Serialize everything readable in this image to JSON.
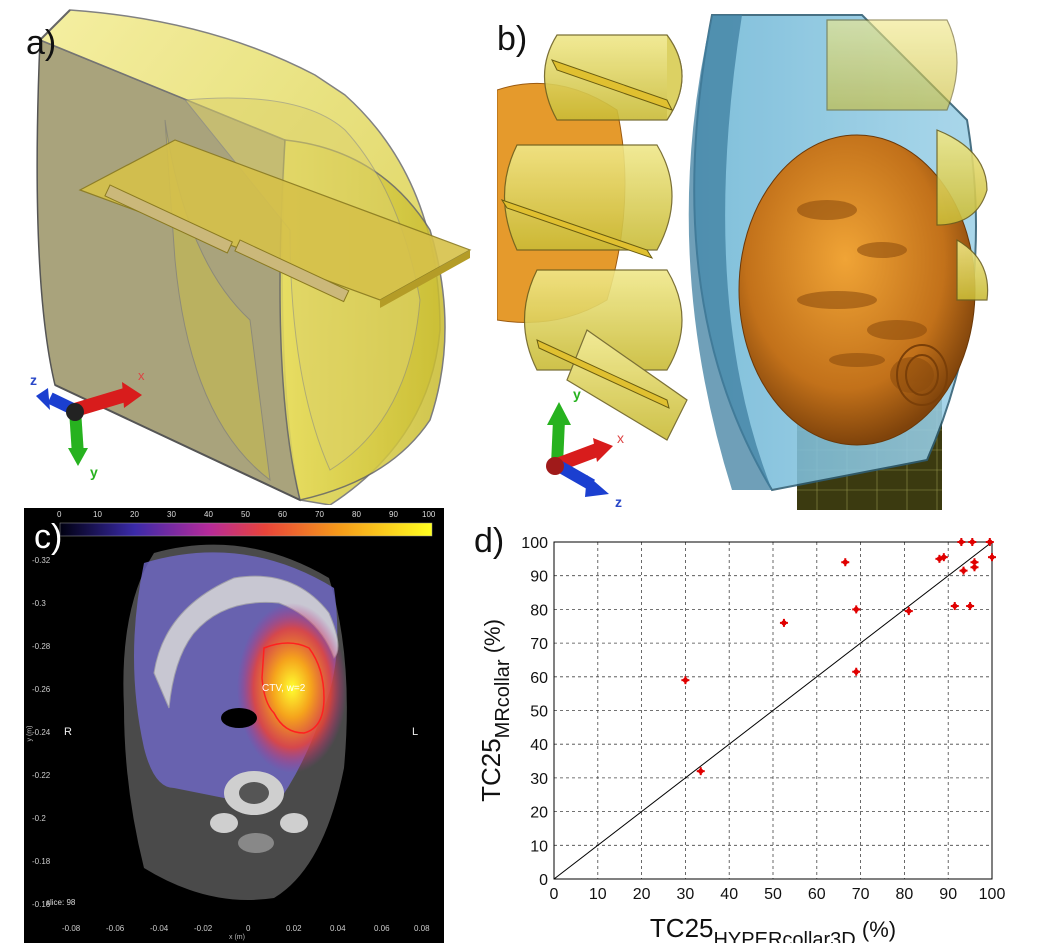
{
  "panels": {
    "a": {
      "label": "a)",
      "axis_x": "x",
      "axis_y": "y",
      "axis_z": "z"
    },
    "b": {
      "label": "b)",
      "axis_x": "x",
      "axis_y": "y",
      "axis_z": "z"
    },
    "c": {
      "label": "c)",
      "colorbar_ticks": [
        "0",
        "10",
        "20",
        "30",
        "40",
        "50",
        "60",
        "70",
        "80",
        "90",
        "100"
      ],
      "y_ticks": [
        "-0.32",
        "-0.3",
        "-0.28",
        "-0.26",
        "-0.24",
        "-0.22",
        "-0.2",
        "-0.18",
        "-0.16"
      ],
      "x_ticks": [
        "-0.08",
        "-0.06",
        "-0.04",
        "-0.02",
        "0",
        "0.02",
        "0.04",
        "0.06",
        "0.08"
      ],
      "x_axis_label": "x (m)",
      "y_axis_label": "y (m)",
      "left_marker": "R",
      "right_marker": "L",
      "ctv_label": "CTV, w=2",
      "slice_label": "slice: 98"
    },
    "d": {
      "label": "d)"
    }
  },
  "chart_data": {
    "type": "scatter",
    "xlabel_main": "TC25",
    "xlabel_sub": "HYPERcollar3D",
    "xlabel_unit": "(%)",
    "ylabel_main": "TC25",
    "ylabel_sub": "MRcollar",
    "ylabel_unit": "(%)",
    "xlim": [
      0,
      100
    ],
    "ylim": [
      0,
      100
    ],
    "grid": true,
    "reference_line": {
      "from": [
        0,
        0
      ],
      "to": [
        100,
        100
      ]
    },
    "xticks": [
      "0",
      "10",
      "20",
      "30",
      "40",
      "50",
      "60",
      "70",
      "80",
      "90",
      "100"
    ],
    "yticks": [
      "0",
      "10",
      "20",
      "30",
      "40",
      "50",
      "60",
      "70",
      "80",
      "90",
      "100"
    ],
    "marker_color": "#e00000",
    "points": [
      {
        "x": 30,
        "y": 59
      },
      {
        "x": 33.5,
        "y": 32
      },
      {
        "x": 52.5,
        "y": 76
      },
      {
        "x": 66.5,
        "y": 94
      },
      {
        "x": 69,
        "y": 80
      },
      {
        "x": 69,
        "y": 61.5
      },
      {
        "x": 81,
        "y": 79.5
      },
      {
        "x": 88,
        "y": 95
      },
      {
        "x": 89,
        "y": 95.5
      },
      {
        "x": 91.5,
        "y": 81
      },
      {
        "x": 93,
        "y": 100
      },
      {
        "x": 93.5,
        "y": 91.5
      },
      {
        "x": 95,
        "y": 81
      },
      {
        "x": 95.5,
        "y": 100
      },
      {
        "x": 96,
        "y": 94
      },
      {
        "x": 96,
        "y": 92.5
      },
      {
        "x": 99.5,
        "y": 100
      },
      {
        "x": 100,
        "y": 95.5
      }
    ]
  }
}
